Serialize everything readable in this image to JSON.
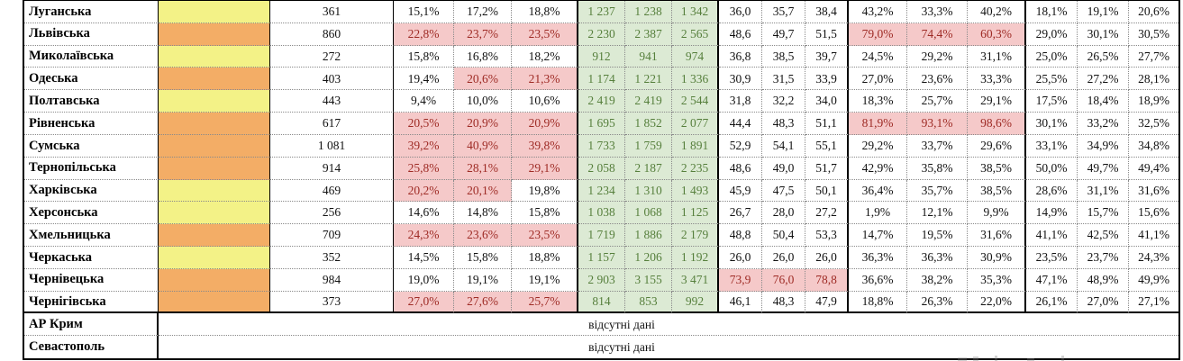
{
  "colors": {
    "row_shade_yellow": "#F3F287",
    "row_shade_orange": "#F3AD66",
    "highlight_bad_bg": "#F5C9C9",
    "highlight_bad_text": "#9E2B25",
    "highlight_good_bg": "#DCEAD4",
    "highlight_good_text": "#567F3C",
    "border_black": "#000000",
    "border_dotted_gray": "#8A8A8A"
  },
  "table": {
    "no_data_label": "відсутні дані",
    "rows": [
      {
        "name": "Луганська",
        "shade": "yellow",
        "count": "361",
        "p1": [
          "15,1%",
          "17,2%",
          "18,8%"
        ],
        "p1h": [
          0,
          0,
          0
        ],
        "g": [
          "1 237",
          "1 238",
          "1 342"
        ],
        "d": [
          "36,0",
          "35,7",
          "38,4"
        ],
        "dh": 0,
        "p2": [
          "43,2%",
          "33,3%",
          "40,2%"
        ],
        "p2h": 0,
        "p3": [
          "18,1%",
          "19,1%",
          "20,6%"
        ]
      },
      {
        "name": "Львівська",
        "shade": "orange",
        "count": "860",
        "p1": [
          "22,8%",
          "23,7%",
          "23,5%"
        ],
        "p1h": [
          1,
          1,
          1
        ],
        "g": [
          "2 230",
          "2 387",
          "2 565"
        ],
        "d": [
          "48,6",
          "49,7",
          "51,5"
        ],
        "dh": 0,
        "p2": [
          "79,0%",
          "74,4%",
          "60,3%"
        ],
        "p2h": 1,
        "p3": [
          "29,0%",
          "30,1%",
          "30,5%"
        ]
      },
      {
        "name": "Миколаївська",
        "shade": "yellow",
        "count": "272",
        "p1": [
          "15,8%",
          "16,8%",
          "18,2%"
        ],
        "p1h": [
          0,
          0,
          0
        ],
        "g": [
          "912",
          "941",
          "974"
        ],
        "d": [
          "36,8",
          "38,5",
          "39,7"
        ],
        "dh": 0,
        "p2": [
          "24,5%",
          "29,2%",
          "31,1%"
        ],
        "p2h": 0,
        "p3": [
          "25,0%",
          "26,5%",
          "27,7%"
        ]
      },
      {
        "name": "Одеська",
        "shade": "orange",
        "count": "403",
        "p1": [
          "19,4%",
          "20,6%",
          "21,3%"
        ],
        "p1h": [
          0,
          1,
          1
        ],
        "g": [
          "1 174",
          "1 221",
          "1 336"
        ],
        "d": [
          "30,9",
          "31,5",
          "33,9"
        ],
        "dh": 0,
        "p2": [
          "27,0%",
          "23,6%",
          "33,3%"
        ],
        "p2h": 0,
        "p3": [
          "25,5%",
          "27,2%",
          "28,1%"
        ]
      },
      {
        "name": "Полтавська",
        "shade": "yellow",
        "count": "443",
        "p1": [
          "9,4%",
          "10,0%",
          "10,6%"
        ],
        "p1h": [
          0,
          0,
          0
        ],
        "g": [
          "2 419",
          "2 419",
          "2 544"
        ],
        "d": [
          "31,8",
          "32,2",
          "34,0"
        ],
        "dh": 0,
        "p2": [
          "18,3%",
          "25,7%",
          "29,1%"
        ],
        "p2h": 0,
        "p3": [
          "17,5%",
          "18,4%",
          "18,9%"
        ]
      },
      {
        "name": "Рівненська",
        "shade": "orange",
        "count": "617",
        "p1": [
          "20,5%",
          "20,9%",
          "20,9%"
        ],
        "p1h": [
          1,
          1,
          1
        ],
        "g": [
          "1 695",
          "1 852",
          "2 077"
        ],
        "d": [
          "44,4",
          "48,3",
          "51,1"
        ],
        "dh": 0,
        "p2": [
          "81,9%",
          "93,1%",
          "98,6%"
        ],
        "p2h": 1,
        "p3": [
          "30,1%",
          "33,2%",
          "32,5%"
        ]
      },
      {
        "name": "Сумська",
        "shade": "orange",
        "count": "1 081",
        "p1": [
          "39,2%",
          "40,9%",
          "39,8%"
        ],
        "p1h": [
          1,
          1,
          1
        ],
        "g": [
          "1 733",
          "1 759",
          "1 891"
        ],
        "d": [
          "52,9",
          "54,1",
          "55,1"
        ],
        "dh": 0,
        "p2": [
          "29,2%",
          "33,7%",
          "29,6%"
        ],
        "p2h": 0,
        "p3": [
          "33,1%",
          "34,9%",
          "34,8%"
        ]
      },
      {
        "name": "Тернопільська",
        "shade": "orange",
        "count": "914",
        "p1": [
          "25,8%",
          "28,1%",
          "29,1%"
        ],
        "p1h": [
          1,
          1,
          1
        ],
        "g": [
          "2 058",
          "2 187",
          "2 235"
        ],
        "d": [
          "48,6",
          "49,0",
          "51,7"
        ],
        "dh": 0,
        "p2": [
          "42,9%",
          "35,8%",
          "38,5%"
        ],
        "p2h": 0,
        "p3": [
          "50,0%",
          "49,7%",
          "49,4%"
        ]
      },
      {
        "name": "Харківська",
        "shade": "yellow",
        "count": "469",
        "p1": [
          "20,2%",
          "20,1%",
          "19,8%"
        ],
        "p1h": [
          1,
          1,
          0
        ],
        "g": [
          "1 234",
          "1 310",
          "1 493"
        ],
        "d": [
          "45,9",
          "47,5",
          "50,1"
        ],
        "dh": 0,
        "p2": [
          "36,4%",
          "35,7%",
          "38,5%"
        ],
        "p2h": 0,
        "p3": [
          "28,6%",
          "31,1%",
          "31,6%"
        ]
      },
      {
        "name": "Херсонська",
        "shade": "yellow",
        "count": "256",
        "p1": [
          "14,6%",
          "14,8%",
          "15,8%"
        ],
        "p1h": [
          0,
          0,
          0
        ],
        "g": [
          "1 038",
          "1 068",
          "1 125"
        ],
        "d": [
          "26,7",
          "28,0",
          "27,2"
        ],
        "dh": 0,
        "p2": [
          "1,9%",
          "12,1%",
          "9,9%"
        ],
        "p2h": 0,
        "p3": [
          "14,9%",
          "15,7%",
          "15,6%"
        ]
      },
      {
        "name": "Хмельницька",
        "shade": "orange",
        "count": "709",
        "p1": [
          "24,3%",
          "23,6%",
          "23,5%"
        ],
        "p1h": [
          1,
          1,
          1
        ],
        "g": [
          "1 719",
          "1 886",
          "2 179"
        ],
        "d": [
          "48,8",
          "50,4",
          "53,3"
        ],
        "dh": 0,
        "p2": [
          "14,7%",
          "19,5%",
          "31,6%"
        ],
        "p2h": 0,
        "p3": [
          "41,1%",
          "42,5%",
          "41,1%"
        ]
      },
      {
        "name": "Черкаська",
        "shade": "yellow",
        "count": "352",
        "p1": [
          "14,5%",
          "15,8%",
          "18,8%"
        ],
        "p1h": [
          0,
          0,
          0
        ],
        "g": [
          "1 157",
          "1 206",
          "1 192"
        ],
        "d": [
          "26,0",
          "26,0",
          "26,0"
        ],
        "dh": 0,
        "p2": [
          "36,3%",
          "36,3%",
          "30,9%"
        ],
        "p2h": 0,
        "p3": [
          "23,5%",
          "23,7%",
          "24,3%"
        ]
      },
      {
        "name": "Чернівецька",
        "shade": "orange",
        "count": "984",
        "p1": [
          "19,0%",
          "19,1%",
          "19,1%"
        ],
        "p1h": [
          0,
          0,
          0
        ],
        "g": [
          "2 903",
          "3 155",
          "3 471"
        ],
        "d": [
          "73,9",
          "76,0",
          "78,8"
        ],
        "dh": 1,
        "p2": [
          "36,6%",
          "38,2%",
          "35,3%"
        ],
        "p2h": 0,
        "p3": [
          "47,1%",
          "48,9%",
          "49,9%"
        ]
      },
      {
        "name": "Чернігівська",
        "shade": "orange",
        "count": "373",
        "p1": [
          "27,0%",
          "27,6%",
          "25,7%"
        ],
        "p1h": [
          1,
          1,
          1
        ],
        "g": [
          "814",
          "853",
          "992"
        ],
        "d": [
          "46,1",
          "48,3",
          "47,9"
        ],
        "dh": 0,
        "p2": [
          "18,8%",
          "26,3%",
          "22,0%"
        ],
        "p2h": 0,
        "p3": [
          "26,1%",
          "27,0%",
          "27,1%"
        ]
      }
    ],
    "no_data_rows": [
      {
        "name": "АР Крим"
      },
      {
        "name": "Севастополь"
      }
    ]
  }
}
